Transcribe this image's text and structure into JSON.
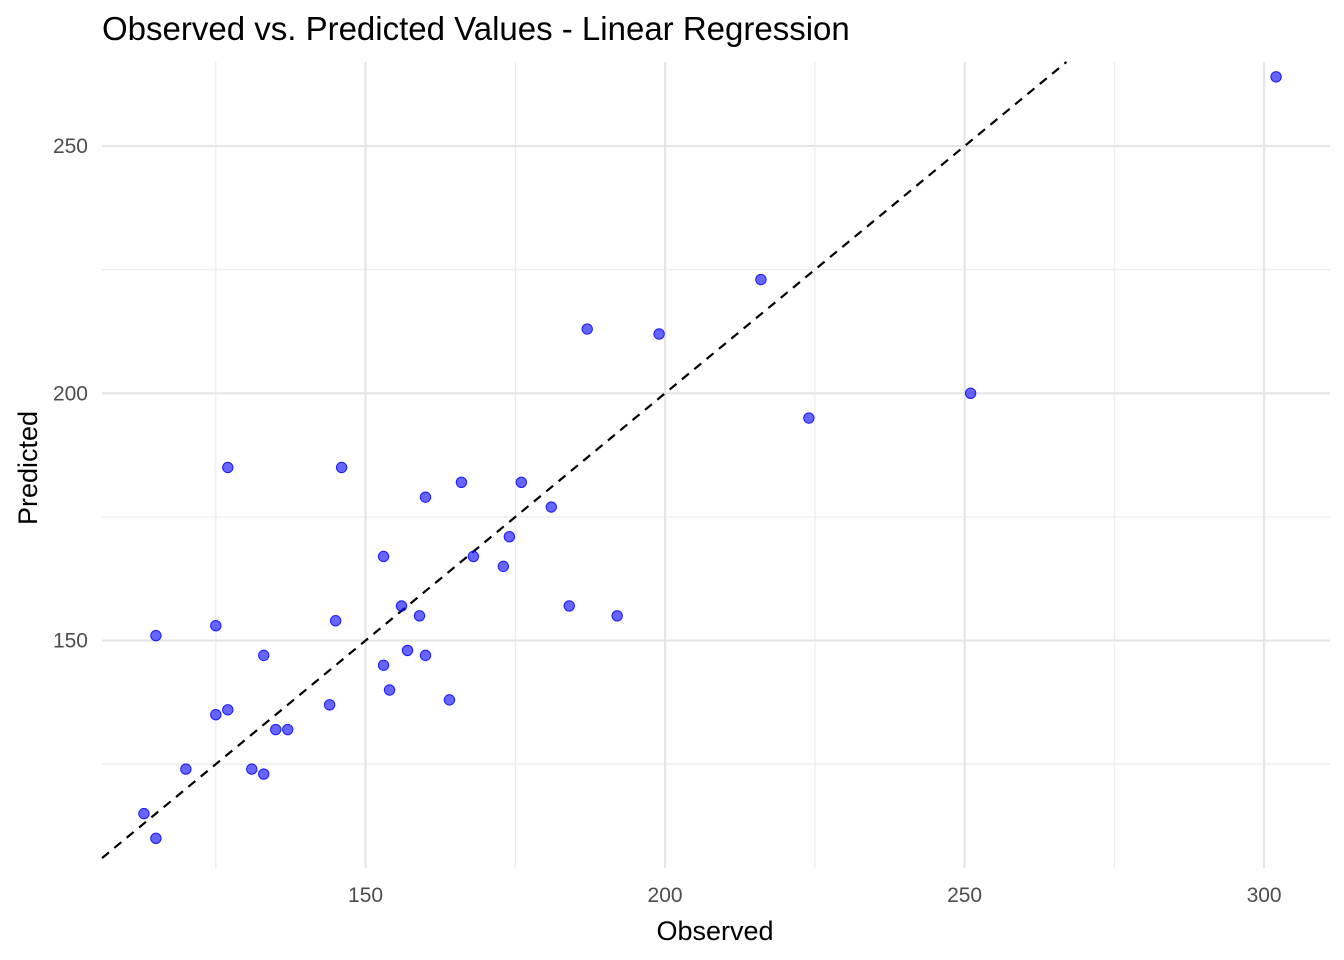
{
  "chart_data": {
    "type": "scatter",
    "title": "Observed vs. Predicted Values - Linear Regression",
    "xlabel": "Observed",
    "ylabel": "Predicted",
    "xlim": [
      106,
      311
    ],
    "ylim": [
      104,
      267
    ],
    "x_ticks": [
      150,
      200,
      250,
      300
    ],
    "y_ticks": [
      150,
      200,
      250
    ],
    "x_minor_ticks": [
      125,
      175,
      225,
      275
    ],
    "y_minor_ticks": [
      125,
      175,
      225
    ],
    "grid": true,
    "point_color": "#0000FF",
    "point_opacity": 0.6,
    "reference_line": {
      "type": "identity",
      "slope": 1,
      "intercept": 0,
      "style": "dashed",
      "color": "#000000"
    },
    "points": [
      {
        "x": 302,
        "y": 264
      },
      {
        "x": 216,
        "y": 223
      },
      {
        "x": 187,
        "y": 213
      },
      {
        "x": 199,
        "y": 212
      },
      {
        "x": 251,
        "y": 200
      },
      {
        "x": 224,
        "y": 195
      },
      {
        "x": 127,
        "y": 185
      },
      {
        "x": 146,
        "y": 185
      },
      {
        "x": 166,
        "y": 182
      },
      {
        "x": 176,
        "y": 182
      },
      {
        "x": 160,
        "y": 179
      },
      {
        "x": 181,
        "y": 177
      },
      {
        "x": 174,
        "y": 171
      },
      {
        "x": 153,
        "y": 167
      },
      {
        "x": 168,
        "y": 167
      },
      {
        "x": 173,
        "y": 165
      },
      {
        "x": 156,
        "y": 157
      },
      {
        "x": 184,
        "y": 157
      },
      {
        "x": 159,
        "y": 155
      },
      {
        "x": 192,
        "y": 155
      },
      {
        "x": 145,
        "y": 154
      },
      {
        "x": 125,
        "y": 153
      },
      {
        "x": 115,
        "y": 151
      },
      {
        "x": 133,
        "y": 147
      },
      {
        "x": 157,
        "y": 148
      },
      {
        "x": 160,
        "y": 147
      },
      {
        "x": 153,
        "y": 145
      },
      {
        "x": 154,
        "y": 140
      },
      {
        "x": 164,
        "y": 138
      },
      {
        "x": 144,
        "y": 137
      },
      {
        "x": 127,
        "y": 136
      },
      {
        "x": 125,
        "y": 135
      },
      {
        "x": 135,
        "y": 132
      },
      {
        "x": 137,
        "y": 132
      },
      {
        "x": 120,
        "y": 124
      },
      {
        "x": 131,
        "y": 124
      },
      {
        "x": 133,
        "y": 123
      },
      {
        "x": 113,
        "y": 115
      },
      {
        "x": 115,
        "y": 110
      }
    ]
  }
}
